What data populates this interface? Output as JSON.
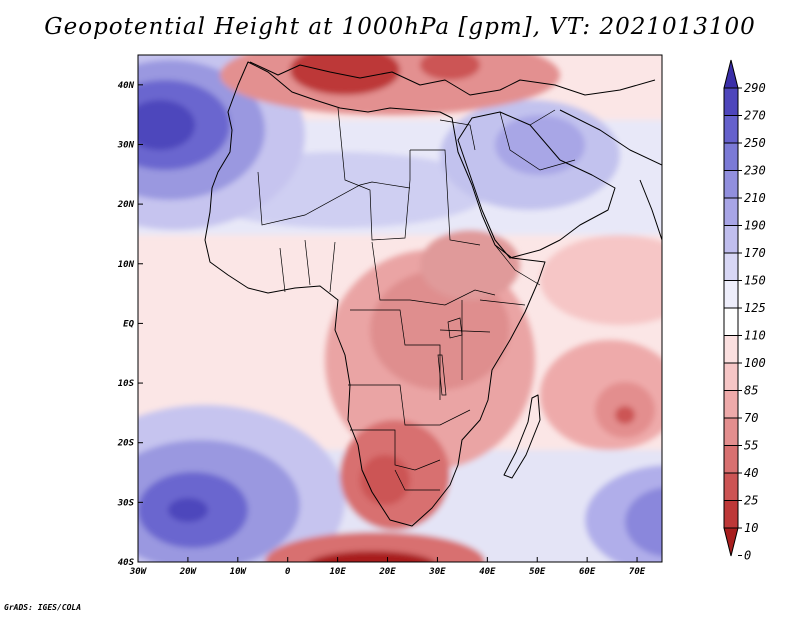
{
  "title": "Geopotential Height at 1000hPa [gpm], VT: 2021013100",
  "credit": "GrADS: IGES/COLA",
  "axes": {
    "lat_labels": [
      "40N",
      "30N",
      "20N",
      "10N",
      "EQ",
      "10S",
      "20S",
      "30S",
      "40S"
    ],
    "lon_labels": [
      "30W",
      "20W",
      "10W",
      "0",
      "10E",
      "20E",
      "30E",
      "40E",
      "50E",
      "60E",
      "70E"
    ]
  },
  "colorbar": {
    "labels": [
      "290",
      "270",
      "250",
      "230",
      "210",
      "190",
      "170",
      "150",
      "125",
      "110",
      "100",
      "85",
      "70",
      "55",
      "40",
      "25",
      "10",
      "0"
    ],
    "colors": [
      "#3a2ea8",
      "#4e46bc",
      "#6561cc",
      "#7b7ad6",
      "#918fde",
      "#a8a5e6",
      "#c0beee",
      "#d8d7f5",
      "#eeeefb",
      "#ffffff",
      "#fbe0e0",
      "#f6c6c6",
      "#eeaaaa",
      "#e38e8e",
      "#d87070",
      "#cc5454",
      "#bd3838",
      "#a81e1e"
    ]
  },
  "chart_data": {
    "type": "heatmap",
    "title": "Geopotential Height at 1000hPa [gpm], VT: 2021013100",
    "variable": "Geopotential Height at 1000hPa",
    "units": "gpm",
    "valid_time": "2021013100",
    "lon_range": [
      -30,
      75
    ],
    "lat_range": [
      -40,
      45
    ],
    "contour_levels": [
      0,
      10,
      25,
      40,
      55,
      70,
      85,
      100,
      110,
      125,
      150,
      170,
      190,
      210,
      230,
      250,
      270,
      290
    ],
    "features": [
      {
        "name": "Atlantic high (north)",
        "lon": -25,
        "lat": 32,
        "value": 250
      },
      {
        "name": "Atlantic high (south)",
        "lon": -19,
        "lat": -31,
        "value": 230
      },
      {
        "name": "Indian Ocean high (east)",
        "lon": 72,
        "lat": -31,
        "value": 180
      },
      {
        "name": "Arabian high",
        "lon": 45,
        "lat": 28,
        "value": 180
      },
      {
        "name": "Mediterranean low",
        "lon": 17,
        "lat": 42,
        "value": 20
      },
      {
        "name": "Southern Ocean low",
        "lon": 18,
        "lat": -40,
        "value": 15
      },
      {
        "name": "Southern Africa low",
        "lon": 19,
        "lat": -27,
        "value": 55
      },
      {
        "name": "Central Africa low",
        "lon": 29,
        "lat": 0,
        "value": 70
      },
      {
        "name": "Indian Ocean low",
        "lon": 67,
        "lat": -16,
        "value": 60
      }
    ]
  }
}
